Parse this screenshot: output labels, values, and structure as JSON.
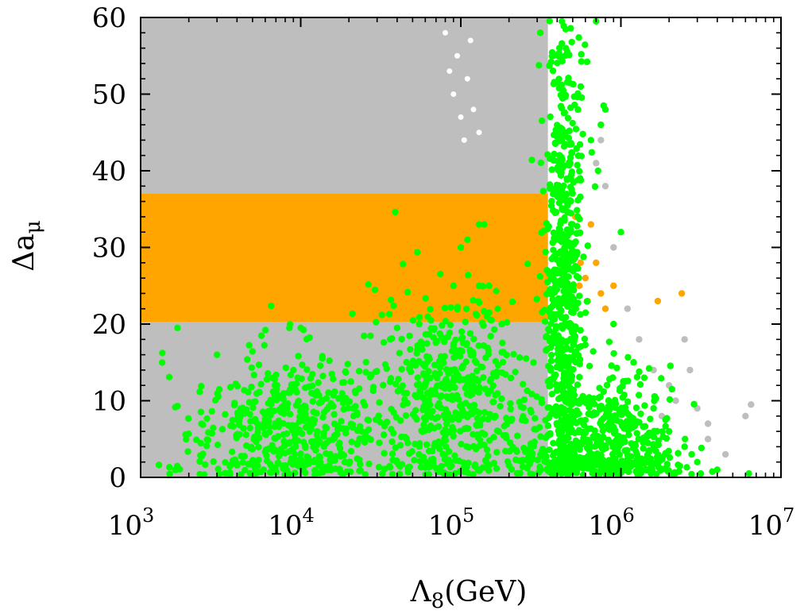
{
  "chart_data": {
    "type": "scatter",
    "title": "",
    "xlabel": "Λ8(GeV)",
    "xlabel_parts": {
      "base": "Λ",
      "sub": "8",
      "unit": "(GeV)"
    },
    "ylabel": "Δaμ",
    "ylabel_parts": {
      "base": "Δa",
      "sub": "μ"
    },
    "xscale": "log",
    "xlim": [
      1000,
      10000000
    ],
    "ylim": [
      0,
      60
    ],
    "x_tick_labels": [
      {
        "value": 1000,
        "base": "10",
        "exp": "3"
      },
      {
        "value": 10000,
        "base": "10",
        "exp": "4"
      },
      {
        "value": 100000,
        "base": "10",
        "exp": "5"
      },
      {
        "value": 1000000,
        "base": "10",
        "exp": "6"
      },
      {
        "value": 10000000,
        "base": "10",
        "exp": "7"
      }
    ],
    "y_ticks": [
      0,
      10,
      20,
      30,
      40,
      50,
      60
    ],
    "y_tick_labels": [
      "0",
      "10",
      "20",
      "30",
      "40",
      "50",
      "60"
    ],
    "colors": {
      "excluded": "#bebebe",
      "muon_g2_band": "#ffa500",
      "allowed": "#00ff00",
      "axes": "#000000"
    },
    "regions": [
      {
        "name": "gray-region",
        "x_range": [
          1000,
          350000
        ],
        "y_range": [
          0,
          60
        ],
        "color": "#bebebe"
      },
      {
        "name": "orange-band",
        "x_range": [
          1000,
          350000
        ],
        "y_range": [
          20.3,
          37
        ],
        "color": "#ffa500"
      }
    ],
    "series": [
      {
        "name": "gray-scatter-voids",
        "description": "white gaps in gray fill",
        "color": "#ffffff",
        "points": [
          [
            80000,
            58
          ],
          [
            95000,
            55
          ],
          [
            110000,
            52
          ],
          [
            120000,
            48
          ],
          [
            100000,
            47
          ],
          [
            90000,
            50
          ],
          [
            130000,
            45
          ],
          [
            85000,
            53
          ],
          [
            115000,
            57
          ],
          [
            105000,
            44
          ]
        ]
      },
      {
        "name": "gray-tail-points",
        "color": "#bebebe",
        "points": [
          [
            900000,
            30
          ],
          [
            1100000,
            22
          ],
          [
            1300000,
            18
          ],
          [
            1600000,
            14
          ],
          [
            2000000,
            12
          ],
          [
            2500000,
            18
          ],
          [
            2700000,
            14
          ],
          [
            3000000,
            9
          ],
          [
            3500000,
            7
          ],
          [
            3500000,
            5
          ],
          [
            4500000,
            3
          ],
          [
            6000000,
            8
          ],
          [
            6500000,
            9.5
          ],
          [
            2200000,
            10
          ],
          [
            1800000,
            8
          ],
          [
            750000,
            44
          ],
          [
            800000,
            38
          ],
          [
            700000,
            41
          ]
        ]
      },
      {
        "name": "orange-tail-points",
        "color": "#ffa500",
        "points": [
          [
            520000,
            34
          ],
          [
            560000,
            28
          ],
          [
            600000,
            26
          ],
          [
            650000,
            33
          ],
          [
            700000,
            28
          ],
          [
            750000,
            24
          ],
          [
            800000,
            22
          ],
          [
            900000,
            25
          ],
          [
            1700000,
            23
          ],
          [
            2400000,
            24
          ],
          [
            550000,
            25
          ],
          [
            620000,
            23
          ]
        ]
      },
      {
        "name": "green-allowed-points",
        "color": "#00ff00",
        "clusters": [
          {
            "x_center": 9000,
            "x_spread": 0.32,
            "y_mean": 6,
            "y_spread": 5,
            "count": 520
          },
          {
            "x_center": 85000,
            "x_spread": 0.22,
            "y_mean": 10,
            "y_spread": 7,
            "count": 520
          },
          {
            "x_center": 440000,
            "x_spread": 0.06,
            "y_mean": 25,
            "y_spread": 18,
            "count": 650
          },
          {
            "x_center": 700000,
            "x_spread": 0.25,
            "y_mean": 4,
            "y_spread": 5,
            "count": 600
          }
        ],
        "points": [
          [
            1700,
            19.5
          ],
          [
            2400,
            7
          ],
          [
            3000,
            16
          ],
          [
            8500,
            19.5
          ],
          [
            10000,
            19.5
          ],
          [
            40000,
            19.5
          ],
          [
            55000,
            20
          ],
          [
            90000,
            25
          ],
          [
            100000,
            30
          ],
          [
            110000,
            31
          ],
          [
            130000,
            33
          ],
          [
            140000,
            33
          ],
          [
            150000,
            25
          ],
          [
            170000,
            22
          ],
          [
            180000,
            20
          ],
          [
            260000,
            1.2
          ],
          [
            700000,
            59.5
          ],
          [
            780000,
            48.5
          ],
          [
            800000,
            48
          ],
          [
            1000000,
            32
          ],
          [
            750000,
            46
          ],
          [
            650000,
            44
          ],
          [
            720000,
            40
          ],
          [
            900000,
            20
          ],
          [
            1200000,
            15
          ],
          [
            1400000,
            13
          ],
          [
            1600000,
            9
          ],
          [
            2000000,
            6
          ],
          [
            2500000,
            4
          ],
          [
            3000000,
            2
          ],
          [
            4000000,
            1
          ],
          [
            6300000,
            0.5
          ]
        ]
      }
    ]
  }
}
